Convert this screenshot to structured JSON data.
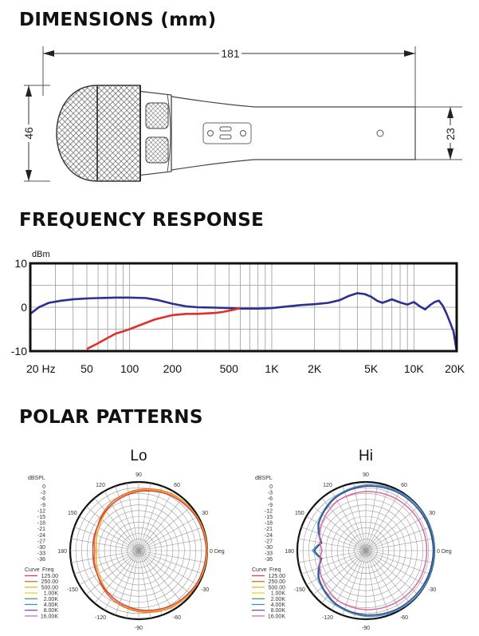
{
  "sections": {
    "dimensions": "DIMENSIONS (mm)",
    "frequency": "FREQUENCY RESPONSE",
    "polar": "POLAR PATTERNS"
  },
  "dimensions": {
    "length": "181",
    "head_diameter": "46",
    "body_diameter": "23"
  },
  "chart_data": [
    {
      "type": "line",
      "title": "FREQUENCY RESPONSE",
      "ylabel": "dBm",
      "xscale": "log",
      "xlim": [
        20,
        20000
      ],
      "ylim": [
        -10,
        10
      ],
      "yticks": [
        "10",
        "0",
        "-10"
      ],
      "xticks": [
        {
          "f": 20,
          "label": "20 Hz"
        },
        {
          "f": 50,
          "label": "50"
        },
        {
          "f": 100,
          "label": "100"
        },
        {
          "f": 200,
          "label": "200"
        },
        {
          "f": 500,
          "label": "500"
        },
        {
          "f": 1000,
          "label": "1K"
        },
        {
          "f": 2000,
          "label": "2K"
        },
        {
          "f": 5000,
          "label": "5K"
        },
        {
          "f": 10000,
          "label": "10K"
        },
        {
          "f": 20000,
          "label": "20K"
        }
      ],
      "grid": true,
      "series": [
        {
          "color": "#2b2f8f",
          "x": [
            20,
            23,
            27,
            33,
            40,
            50,
            60,
            80,
            100,
            130,
            160,
            200,
            250,
            300,
            400,
            500,
            600,
            800,
            1000,
            1300,
            1600,
            2000,
            2500,
            3000,
            3500,
            4000,
            4500,
            5000,
            5500,
            6000,
            7000,
            8000,
            9000,
            10000,
            11000,
            12000,
            13000,
            14000,
            15000,
            16000,
            17000,
            18000,
            19000,
            20000
          ],
          "y": [
            -1.5,
            0,
            1,
            1.5,
            1.8,
            2,
            2.1,
            2.2,
            2.2,
            2.1,
            1.6,
            0.8,
            0.2,
            0,
            -0.1,
            -0.2,
            -0.3,
            -0.3,
            -0.2,
            0.2,
            0.5,
            0.7,
            1.0,
            1.6,
            2.6,
            3.2,
            3.0,
            2.4,
            1.5,
            1.0,
            1.8,
            1.1,
            0.6,
            1.2,
            0.2,
            -0.5,
            0.5,
            1.2,
            1.5,
            0.3,
            -1.5,
            -3.5,
            -5.5,
            -10
          ]
        },
        {
          "color": "#e03027",
          "x": [
            50,
            60,
            70,
            80,
            90,
            100,
            120,
            150,
            200,
            250,
            300,
            350,
            400,
            450,
            500,
            550,
            600
          ],
          "y": [
            -9.5,
            -8.2,
            -7.0,
            -6.0,
            -5.5,
            -5.0,
            -4.0,
            -2.8,
            -1.8,
            -1.5,
            -1.5,
            -1.4,
            -1.3,
            -1.1,
            -0.8,
            -0.5,
            -0.2
          ]
        }
      ]
    },
    {
      "type": "polar",
      "title": "Lo",
      "rlabel": "dBSPL",
      "rticks": [
        "0",
        "-3",
        "-6",
        "-9",
        "-12",
        "-15",
        "-18",
        "-21",
        "-24",
        "-27",
        "-30",
        "-33",
        "-36"
      ],
      "angle_labels": [
        "0 Deg",
        "30",
        "60",
        "90",
        "120",
        "150",
        "180",
        "-150",
        "-120",
        "-90",
        "-60",
        "-30"
      ],
      "legend_header": [
        "Curve",
        "Freq"
      ],
      "legend": [
        {
          "label": "125.00",
          "color": "#d2454e"
        },
        {
          "label": "250.00",
          "color": "#e46a2a"
        },
        {
          "label": "500.00",
          "color": "#f0b021"
        },
        {
          "label": "1.00K",
          "color": "#e3d23a"
        },
        {
          "label": "2.00K",
          "color": "#4aa64a"
        },
        {
          "label": "4.00K",
          "color": "#3d8fd1"
        },
        {
          "label": "8.00K",
          "color": "#7b4f9e"
        },
        {
          "label": "16.00K",
          "color": "#d86aa8"
        }
      ],
      "curves": [
        {
          "color": "#e46a2a",
          "angles": [
            0,
            30,
            60,
            90,
            120,
            150,
            180,
            210,
            240,
            270,
            300,
            330
          ],
          "r_db": [
            0,
            -0.5,
            -1.5,
            -4,
            -7,
            -11,
            -13,
            -11,
            -7,
            -4,
            -1.5,
            -0.5
          ]
        },
        {
          "color": "#f0b021",
          "angles": [
            0,
            30,
            60,
            90,
            120,
            150,
            180,
            210,
            240,
            270,
            300,
            330
          ],
          "r_db": [
            0,
            -0.6,
            -1.8,
            -4.5,
            -8,
            -12,
            -14,
            -12,
            -8,
            -4.5,
            -1.8,
            -0.6
          ]
        },
        {
          "color": "#d2454e",
          "angles": [
            0,
            30,
            60,
            90,
            120,
            150,
            180,
            210,
            240,
            270,
            300,
            330
          ],
          "r_db": [
            -0.5,
            -1,
            -2.5,
            -5,
            -8,
            -11,
            -12,
            -11,
            -8,
            -5,
            -2.5,
            -1
          ]
        }
      ]
    },
    {
      "type": "polar",
      "title": "Hi",
      "rlabel": "dBSPL",
      "rticks": [
        "0",
        "-3",
        "-6",
        "-9",
        "-12",
        "-15",
        "-18",
        "-21",
        "-24",
        "-27",
        "-30",
        "-33",
        "-36"
      ],
      "angle_labels": [
        "0 Deg",
        "30",
        "60",
        "90",
        "120",
        "150",
        "180",
        "-150",
        "-120",
        "-90",
        "-60",
        "-30"
      ],
      "legend_header": [
        "Curve",
        "Freq"
      ],
      "legend": [
        {
          "label": "125.00",
          "color": "#d2454e"
        },
        {
          "label": "250.00",
          "color": "#e46a2a"
        },
        {
          "label": "500.00",
          "color": "#f0b021"
        },
        {
          "label": "1.00K",
          "color": "#e3d23a"
        },
        {
          "label": "2.00K",
          "color": "#4aa64a"
        },
        {
          "label": "4.00K",
          "color": "#3d8fd1"
        },
        {
          "label": "8.00K",
          "color": "#7b4f9e"
        },
        {
          "label": "16.00K",
          "color": "#d86aa8"
        }
      ],
      "curves": [
        {
          "color": "#3d8fd1",
          "angles": [
            0,
            30,
            60,
            90,
            120,
            150,
            170,
            180,
            190,
            210,
            240,
            270,
            300,
            330
          ],
          "r_db": [
            0,
            0,
            -0.5,
            -1.5,
            -3.5,
            -7,
            -12,
            -8,
            -12,
            -7,
            -3.5,
            -1.5,
            -0.5,
            0
          ]
        },
        {
          "color": "#3d4a7a",
          "angles": [
            0,
            30,
            60,
            90,
            120,
            150,
            170,
            180,
            190,
            210,
            240,
            270,
            300,
            330
          ],
          "r_db": [
            -0.6,
            -0.8,
            -1.2,
            -2.2,
            -4,
            -7.5,
            -12.5,
            -9,
            -12.5,
            -7.5,
            -4,
            -2.2,
            -1.2,
            -0.8
          ]
        },
        {
          "color": "#d86aa8",
          "angles": [
            0,
            30,
            60,
            90,
            120,
            150,
            180,
            210,
            240,
            270,
            300,
            330
          ],
          "r_db": [
            -4,
            -4,
            -4.5,
            -5,
            -6,
            -9,
            -13,
            -9,
            -6,
            -5,
            -4.5,
            -4
          ]
        }
      ]
    }
  ]
}
